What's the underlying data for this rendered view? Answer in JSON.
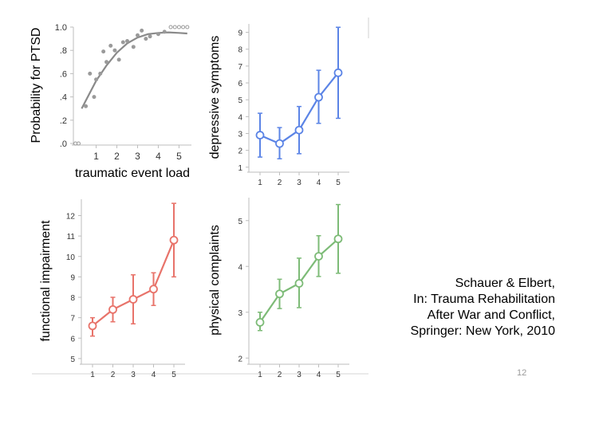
{
  "citation": {
    "line1": "Schauer & Elbert,",
    "line2": "In: Trauma Rehabilitation",
    "line3": "After War and Conflict,",
    "line4": "Springer: New York, 2010"
  },
  "page_number": "12",
  "chart_data": [
    {
      "type": "scatter",
      "title": "",
      "xlabel": "traumatic event load",
      "ylabel": "Probability for PTSD",
      "xticks": [
        "1",
        "2",
        "3",
        "4",
        "5"
      ],
      "yticks": [
        ".0",
        ".2",
        ".4",
        ".6",
        ".8",
        "1.0"
      ],
      "xlim": [
        -0.1,
        5.6
      ],
      "ylim": [
        0,
        1.0
      ],
      "color": "#9a9a9a",
      "line_color": "#8a8a8a",
      "points": [
        {
          "x": 0.0,
          "y": 0.0
        },
        {
          "x": 0.15,
          "y": 0.0
        },
        {
          "x": 0.5,
          "y": 0.32
        },
        {
          "x": 0.7,
          "y": 0.6
        },
        {
          "x": 0.9,
          "y": 0.4
        },
        {
          "x": 1.0,
          "y": 0.55
        },
        {
          "x": 1.2,
          "y": 0.6
        },
        {
          "x": 1.35,
          "y": 0.79
        },
        {
          "x": 1.5,
          "y": 0.7
        },
        {
          "x": 1.7,
          "y": 0.84
        },
        {
          "x": 1.9,
          "y": 0.8
        },
        {
          "x": 2.1,
          "y": 0.72
        },
        {
          "x": 2.3,
          "y": 0.87
        },
        {
          "x": 2.5,
          "y": 0.88
        },
        {
          "x": 2.8,
          "y": 0.83
        },
        {
          "x": 3.0,
          "y": 0.93
        },
        {
          "x": 3.2,
          "y": 0.97
        },
        {
          "x": 3.4,
          "y": 0.9
        },
        {
          "x": 3.6,
          "y": 0.92
        },
        {
          "x": 4.0,
          "y": 0.94
        },
        {
          "x": 4.3,
          "y": 0.96
        },
        {
          "x": 4.6,
          "y": 1.0
        },
        {
          "x": 4.8,
          "y": 1.0
        },
        {
          "x": 5.0,
          "y": 1.0
        },
        {
          "x": 5.2,
          "y": 1.0
        },
        {
          "x": 5.4,
          "y": 1.0
        }
      ],
      "fit_curve": [
        {
          "x": 0.3,
          "y": 0.3
        },
        {
          "x": 1.0,
          "y": 0.54
        },
        {
          "x": 1.5,
          "y": 0.67
        },
        {
          "x": 2.0,
          "y": 0.78
        },
        {
          "x": 2.5,
          "y": 0.86
        },
        {
          "x": 3.0,
          "y": 0.91
        },
        {
          "x": 3.5,
          "y": 0.94
        },
        {
          "x": 4.0,
          "y": 0.95
        },
        {
          "x": 4.5,
          "y": 0.955
        },
        {
          "x": 5.0,
          "y": 0.95
        },
        {
          "x": 5.4,
          "y": 0.945
        }
      ]
    },
    {
      "type": "line",
      "title": "",
      "xlabel": "",
      "ylabel": "depressive symptoms",
      "x": [
        1,
        2,
        3,
        4,
        5
      ],
      "xticks": [
        "1",
        "2",
        "3",
        "4",
        "5"
      ],
      "yticks": [
        "1",
        "2",
        "3",
        "4",
        "5",
        "6",
        "7",
        "8",
        "9"
      ],
      "ylim": [
        0.8,
        9.5
      ],
      "color": "#5b84e6",
      "values": [
        2.9,
        2.4,
        3.2,
        5.15,
        6.6
      ],
      "err_low": [
        1.6,
        1.5,
        1.8,
        3.6,
        3.9
      ],
      "err_high": [
        4.2,
        3.35,
        4.6,
        6.75,
        9.3
      ]
    },
    {
      "type": "line",
      "title": "",
      "xlabel": "",
      "ylabel": "functional impairment",
      "x": [
        1,
        2,
        3,
        4,
        5
      ],
      "xticks": [
        "1",
        "2",
        "3",
        "4",
        "5"
      ],
      "yticks": [
        "5",
        "6",
        "7",
        "8",
        "9",
        "10",
        "11",
        "12"
      ],
      "ylim": [
        4.8,
        12.8
      ],
      "color": "#e8736a",
      "values": [
        6.6,
        7.4,
        7.9,
        8.4,
        10.8
      ],
      "err_low": [
        6.1,
        6.8,
        6.7,
        7.6,
        9.0
      ],
      "err_high": [
        7.0,
        8.0,
        9.1,
        9.2,
        12.6
      ]
    },
    {
      "type": "line",
      "title": "",
      "xlabel": "",
      "ylabel": "physical complaints",
      "x": [
        1,
        2,
        3,
        4,
        5
      ],
      "xticks": [
        "1",
        "2",
        "3",
        "4",
        "5"
      ],
      "yticks": [
        "2",
        "3",
        "4",
        "5"
      ],
      "ylim": [
        1.9,
        5.5
      ],
      "color": "#7dbb77",
      "values": [
        2.78,
        3.4,
        3.63,
        4.22,
        4.6
      ],
      "err_low": [
        2.6,
        3.08,
        3.1,
        3.78,
        3.85
      ],
      "err_high": [
        3.0,
        3.72,
        4.18,
        4.67,
        5.35
      ]
    }
  ]
}
